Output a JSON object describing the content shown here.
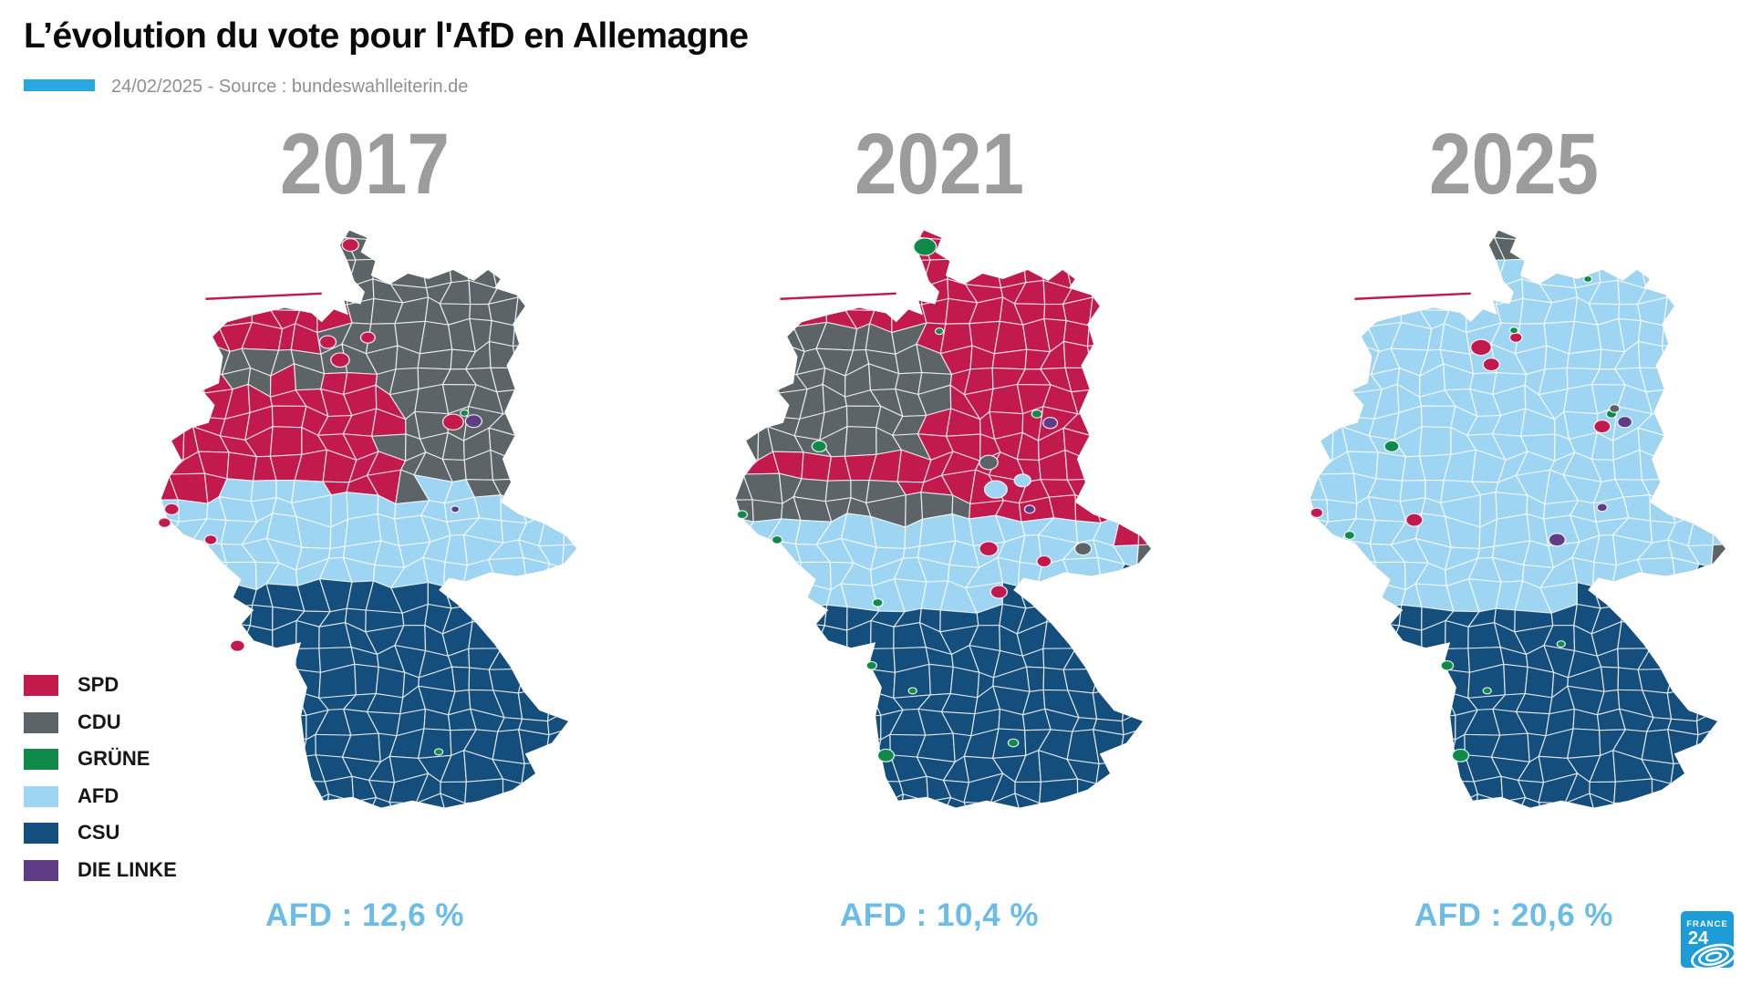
{
  "header": {
    "title": "L’évolution du vote pour l'AfD en Allemagne",
    "source_line": "24/02/2025 - Source : bundeswahlleiterin.de",
    "accent_bar_color": "#29a7e1",
    "source_text_color": "#8e9093"
  },
  "years": [
    "2017",
    "2021",
    "2025"
  ],
  "legend": {
    "items": [
      {
        "label": "SPD",
        "color": "#c31a4d"
      },
      {
        "label": "CDU",
        "color": "#5d6467"
      },
      {
        "label": "GRÜNE",
        "color": "#108a48"
      },
      {
        "label": "AFD",
        "color": "#9ed5f2"
      },
      {
        "label": "CSU",
        "color": "#144e7c"
      },
      {
        "label": "DIE LINKE",
        "color": "#5f3c85"
      }
    ]
  },
  "results": [
    {
      "year": "2017",
      "label": "AFD : 12,6 %"
    },
    {
      "year": "2021",
      "label": "AFD : 10,4 %"
    },
    {
      "year": "2025",
      "label": "AFD : 20,6 %"
    }
  ],
  "styles": {
    "year_color": "#9c9c9c",
    "result_color": "#6cbce8",
    "map_border_color": "#ffffff"
  },
  "logo": {
    "line1": "FRANCE",
    "line2": "24",
    "color": "#1e9cd7"
  },
  "chart_data": {
    "type": "choropleth-map",
    "title": "L’évolution du vote pour l'AfD en Allemagne",
    "date": "24/02/2025",
    "source": "bundeswahlleiterin.de",
    "legend_parties": [
      "SPD",
      "CDU",
      "GRÜNE",
      "AFD",
      "CSU",
      "DIE LINKE"
    ],
    "series": [
      {
        "year": "2017",
        "afd_share_pct": 12.6
      },
      {
        "year": "2021",
        "afd_share_pct": 10.4
      },
      {
        "year": "2025",
        "afd_share_pct": 20.6
      }
    ]
  }
}
